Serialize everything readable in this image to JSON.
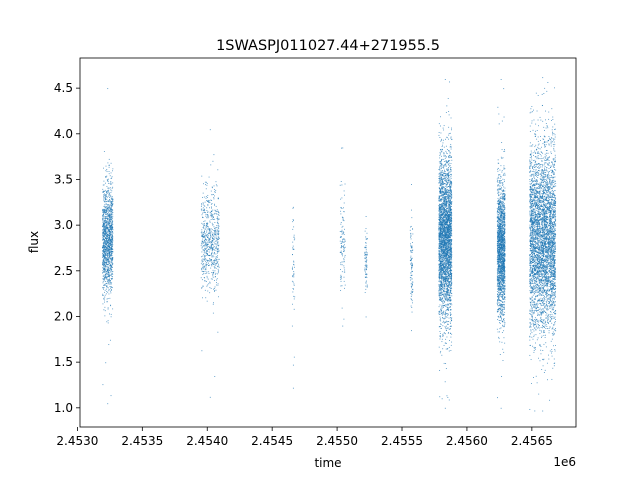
{
  "chart_data": {
    "type": "scatter",
    "title": "1SWASPJ011027.44+271955.5",
    "xlabel": "time",
    "ylabel": "flux",
    "x_offset_label": "1e6",
    "xlim": [
      2.45302,
      2.45684
    ],
    "ylim": [
      0.79,
      4.83
    ],
    "x_ticks": [
      2.453,
      2.4535,
      2.454,
      2.4545,
      2.455,
      2.4555,
      2.456,
      2.4565
    ],
    "x_tick_labels": [
      "2.4530",
      "2.4535",
      "2.4540",
      "2.4545",
      "2.4550",
      "2.4555",
      "2.4560",
      "2.4565"
    ],
    "y_ticks": [
      1.0,
      1.5,
      2.0,
      2.5,
      3.0,
      3.5,
      4.0,
      4.5
    ],
    "y_tick_labels": [
      "1.0",
      "1.5",
      "2.0",
      "2.5",
      "3.0",
      "3.5",
      "4.0",
      "4.5"
    ],
    "grid": false,
    "marker_color": "#1f77b4",
    "series": [
      {
        "segments": [
          {
            "x_range": [
              2.45319,
              2.45327
            ],
            "y_center": 2.85,
            "y_spread": 0.3,
            "n": 1300,
            "y_min": 1.05,
            "y_max": 4.5
          },
          {
            "x_range": [
              2.45395,
              2.45409
            ],
            "y_center": 2.82,
            "y_spread": 0.26,
            "n": 650,
            "y_min": 1.12,
            "y_max": 4.05
          },
          {
            "x_range": [
              2.45465,
              2.45467
            ],
            "y_center": 2.6,
            "y_spread": 0.35,
            "n": 45,
            "y_min": 1.22,
            "y_max": 3.2
          },
          {
            "x_range": [
              2.45502,
              2.45506
            ],
            "y_center": 2.8,
            "y_spread": 0.3,
            "n": 110,
            "y_min": 1.9,
            "y_max": 3.85
          },
          {
            "x_range": [
              2.45521,
              2.45523
            ],
            "y_center": 2.6,
            "y_spread": 0.18,
            "n": 70,
            "y_min": 2.0,
            "y_max": 3.1
          },
          {
            "x_range": [
              2.45556,
              2.45558
            ],
            "y_center": 2.6,
            "y_spread": 0.22,
            "n": 90,
            "y_min": 1.85,
            "y_max": 3.45
          },
          {
            "x_range": [
              2.45578,
              2.45588
            ],
            "y_center": 2.85,
            "y_spread": 0.45,
            "n": 3200,
            "y_min": 1.0,
            "y_max": 4.6
          },
          {
            "x_range": [
              2.45623,
              2.45629
            ],
            "y_center": 2.75,
            "y_spread": 0.38,
            "n": 1800,
            "y_min": 1.0,
            "y_max": 4.6
          },
          {
            "x_range": [
              2.45648,
              2.45668
            ],
            "y_center": 2.85,
            "y_spread": 0.5,
            "n": 4200,
            "y_min": 0.97,
            "y_max": 4.62
          }
        ]
      }
    ]
  }
}
